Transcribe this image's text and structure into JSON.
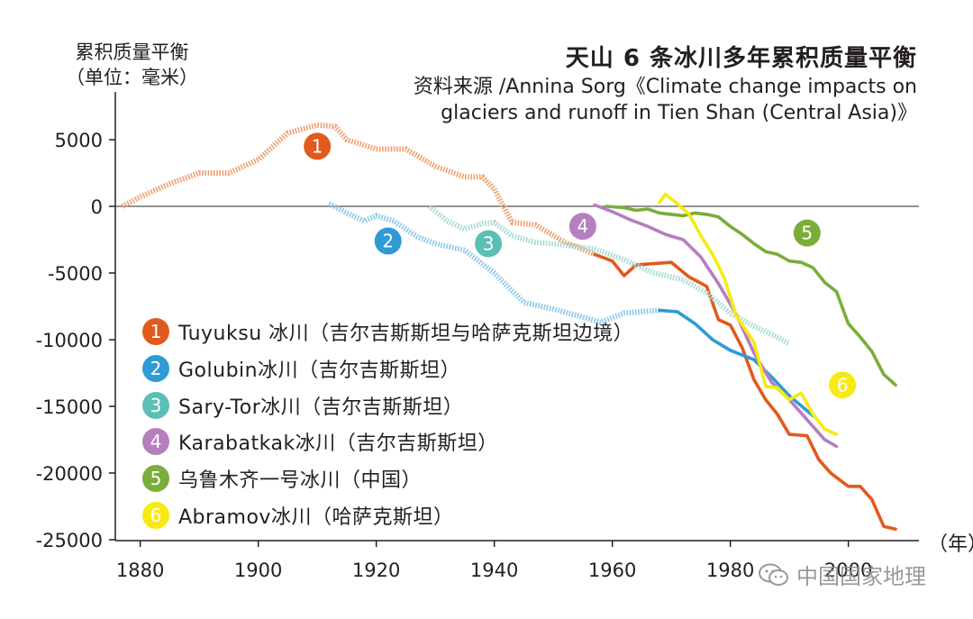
{
  "title": "天山 6 条冰川多年累积质量平衡",
  "subtitle": "资料来源 /Annina Sorg《Climate change impacts on glaciers and runoff in Tien Shan (Central Asia)》",
  "ylabel_line1": "累积质量平衡",
  "ylabel_line2": "（单位：毫米）",
  "x_unit": "（年）",
  "watermark": "中国国家地理",
  "colors": {
    "s1": "#e15a1e",
    "s2": "#2f9ad6",
    "s3": "#5bbfb5",
    "s4": "#b57fc0",
    "s5": "#7aad3a",
    "s6": "#f7ea12",
    "axis": "#231f20",
    "dotted1": "#f0a070",
    "dotted2": "#8cc8ea",
    "dotted3": "#a6dcd4"
  },
  "legend": [
    {
      "num": "1",
      "label": "Tuyuksu 冰川（吉尔吉斯斯坦与哈萨克斯坦边境）",
      "color": "#e15a1e"
    },
    {
      "num": "2",
      "label": "Golubin冰川（吉尔吉斯斯坦）",
      "color": "#2f9ad6"
    },
    {
      "num": "3",
      "label": "Sary-Tor冰川（吉尔吉斯斯坦）",
      "color": "#5bbfb5"
    },
    {
      "num": "4",
      "label": "Karabatkak冰川（吉尔吉斯斯坦）",
      "color": "#b57fc0"
    },
    {
      "num": "5",
      "label": "乌鲁木齐一号冰川（中国）",
      "color": "#7aad3a"
    },
    {
      "num": "6",
      "label": "Abramov冰川（哈萨克斯坦）",
      "color": "#f7ea12"
    }
  ],
  "chart_data": {
    "type": "line",
    "xlim": [
      1872,
      2012
    ],
    "ylim": [
      -25000,
      8000
    ],
    "x_ticks": [
      1880,
      1900,
      1920,
      1940,
      1960,
      1980,
      2000
    ],
    "y_ticks": [
      5000,
      0,
      -5000,
      -10000,
      -15000,
      -20000,
      -25000
    ],
    "y_tick_labels": [
      "5000",
      "0",
      "-5000",
      "-10000",
      "-15000",
      "-20000",
      "-25000"
    ],
    "series": [
      {
        "name": "1",
        "color": "#e15a1e",
        "label_pos": [
          1910,
          4500
        ],
        "reconstructed": [
          [
            1877,
            0
          ],
          [
            1880,
            700
          ],
          [
            1885,
            1700
          ],
          [
            1890,
            2500
          ],
          [
            1895,
            2500
          ],
          [
            1900,
            3500
          ],
          [
            1905,
            5500
          ],
          [
            1910,
            6100
          ],
          [
            1913,
            6000
          ],
          [
            1915,
            5000
          ],
          [
            1920,
            4300
          ],
          [
            1925,
            4300
          ],
          [
            1930,
            3000
          ],
          [
            1935,
            2200
          ],
          [
            1938,
            2200
          ],
          [
            1940,
            1300
          ],
          [
            1943,
            -1200
          ],
          [
            1947,
            -1400
          ],
          [
            1952,
            -2700
          ],
          [
            1957,
            -3600
          ]
        ],
        "measured": [
          [
            1957,
            -3600
          ],
          [
            1960,
            -4100
          ],
          [
            1962,
            -5200
          ],
          [
            1964,
            -4400
          ],
          [
            1967,
            -4300
          ],
          [
            1970,
            -4200
          ],
          [
            1973,
            -5300
          ],
          [
            1976,
            -6000
          ],
          [
            1978,
            -8500
          ],
          [
            1980,
            -8900
          ],
          [
            1982,
            -10600
          ],
          [
            1984,
            -13000
          ],
          [
            1986,
            -14500
          ],
          [
            1988,
            -15600
          ],
          [
            1990,
            -17100
          ],
          [
            1993,
            -17200
          ],
          [
            1995,
            -19000
          ],
          [
            1997,
            -20000
          ],
          [
            2000,
            -21000
          ],
          [
            2002,
            -21000
          ],
          [
            2004,
            -22000
          ],
          [
            2006,
            -24000
          ],
          [
            2008,
            -24200
          ]
        ]
      },
      {
        "name": "2",
        "color": "#2f9ad6",
        "label_pos": [
          1922,
          -2600
        ],
        "reconstructed": [
          [
            1912,
            200
          ],
          [
            1915,
            -500
          ],
          [
            1918,
            -1100
          ],
          [
            1920,
            -700
          ],
          [
            1923,
            -1100
          ],
          [
            1927,
            -2300
          ],
          [
            1930,
            -2800
          ],
          [
            1935,
            -3300
          ],
          [
            1940,
            -5000
          ],
          [
            1945,
            -7200
          ],
          [
            1950,
            -7700
          ],
          [
            1955,
            -8300
          ],
          [
            1958,
            -8700
          ],
          [
            1962,
            -8000
          ],
          [
            1968,
            -7800
          ]
        ],
        "measured": [
          [
            1968,
            -7800
          ],
          [
            1971,
            -7900
          ],
          [
            1974,
            -8800
          ],
          [
            1977,
            -10000
          ],
          [
            1980,
            -10800
          ],
          [
            1984,
            -11500
          ],
          [
            1987,
            -12800
          ],
          [
            1990,
            -14200
          ],
          [
            1994,
            -15700
          ]
        ]
      },
      {
        "name": "3",
        "color": "#5bbfb5",
        "label_pos": [
          1939,
          -2800
        ],
        "reconstructed": [
          [
            1929,
            0
          ],
          [
            1932,
            -1100
          ],
          [
            1935,
            -1700
          ],
          [
            1938,
            -1300
          ],
          [
            1940,
            -1200
          ],
          [
            1943,
            -2200
          ],
          [
            1947,
            -2700
          ],
          [
            1952,
            -2900
          ],
          [
            1957,
            -3200
          ],
          [
            1962,
            -4000
          ],
          [
            1967,
            -5000
          ],
          [
            1972,
            -5500
          ],
          [
            1976,
            -6500
          ],
          [
            1980,
            -8000
          ],
          [
            1984,
            -9000
          ],
          [
            1987,
            -9600
          ],
          [
            1990,
            -10300
          ]
        ]
      },
      {
        "name": "4",
        "color": "#b57fc0",
        "label_pos": [
          1955,
          -1500
        ],
        "measured": [
          [
            1957,
            100
          ],
          [
            1960,
            -400
          ],
          [
            1963,
            -1000
          ],
          [
            1966,
            -1500
          ],
          [
            1969,
            -2100
          ],
          [
            1972,
            -2500
          ],
          [
            1975,
            -3800
          ],
          [
            1978,
            -5800
          ],
          [
            1981,
            -8100
          ],
          [
            1984,
            -11000
          ],
          [
            1987,
            -13200
          ],
          [
            1990,
            -14500
          ],
          [
            1993,
            -16000
          ],
          [
            1996,
            -17500
          ],
          [
            1998,
            -18000
          ]
        ]
      },
      {
        "name": "5",
        "color": "#7aad3a",
        "label_pos": [
          1993,
          -2000
        ],
        "measured": [
          [
            1959,
            0
          ],
          [
            1962,
            -100
          ],
          [
            1964,
            -300
          ],
          [
            1966,
            -200
          ],
          [
            1968,
            -500
          ],
          [
            1970,
            -600
          ],
          [
            1972,
            -700
          ],
          [
            1974,
            -500
          ],
          [
            1976,
            -600
          ],
          [
            1978,
            -800
          ],
          [
            1980,
            -1500
          ],
          [
            1982,
            -2100
          ],
          [
            1984,
            -2800
          ],
          [
            1986,
            -3400
          ],
          [
            1988,
            -3600
          ],
          [
            1990,
            -4100
          ],
          [
            1992,
            -4200
          ],
          [
            1994,
            -4600
          ],
          [
            1996,
            -5700
          ],
          [
            1998,
            -6400
          ],
          [
            2000,
            -8800
          ],
          [
            2002,
            -9800
          ],
          [
            2004,
            -10900
          ],
          [
            2006,
            -12600
          ],
          [
            2008,
            -13400
          ]
        ]
      },
      {
        "name": "6",
        "color": "#f7ea12",
        "label_pos": [
          1999,
          -13400
        ],
        "measured": [
          [
            1968,
            300
          ],
          [
            1969,
            900
          ],
          [
            1971,
            200
          ],
          [
            1973,
            -600
          ],
          [
            1975,
            -2200
          ],
          [
            1977,
            -3600
          ],
          [
            1979,
            -5400
          ],
          [
            1981,
            -8200
          ],
          [
            1984,
            -10200
          ],
          [
            1986,
            -13500
          ],
          [
            1988,
            -13600
          ],
          [
            1990,
            -14500
          ],
          [
            1992,
            -14000
          ],
          [
            1994,
            -15600
          ],
          [
            1996,
            -16700
          ],
          [
            1998,
            -17100
          ]
        ]
      }
    ]
  }
}
